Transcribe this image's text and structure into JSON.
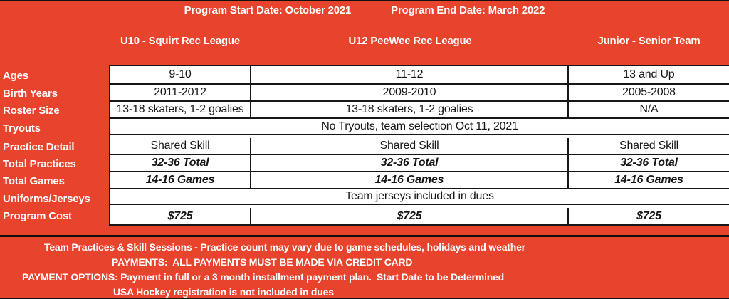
{
  "title_bar": {
    "start_date": "Program Start Date: October 2021",
    "end_date": "Program End Date: March 2022"
  },
  "table": {
    "column_headers": [
      "U10 - Squirt Rec League",
      "U12 PeeWee Rec League",
      "Junior - Senior Team"
    ],
    "rows": [
      {
        "label": "Ages",
        "type": "cells",
        "values": [
          "9-10",
          "11-12",
          "13 and Up"
        ],
        "emphasis": false
      },
      {
        "label": "Birth Years",
        "type": "cells",
        "values": [
          "2011-2012",
          "2009-2010",
          "2005-2008"
        ],
        "emphasis": false
      },
      {
        "label": "Roster Size",
        "type": "cells",
        "values": [
          "13-18 skaters, 1-2 goalies",
          "13-18 skaters, 1-2 goalies",
          "N/A"
        ],
        "emphasis": false
      },
      {
        "label": "Tryouts",
        "type": "merged",
        "value": "No Tryouts, team selection Oct 11, 2021",
        "emphasis": false
      },
      {
        "label": "Practice Detail",
        "type": "cells",
        "values": [
          "Shared Skill",
          "Shared Skill",
          "Shared Skill"
        ],
        "emphasis": false
      },
      {
        "label": "Total Practices",
        "type": "cells",
        "values": [
          "32-36 Total",
          "32-36 Total",
          "32-36 Total"
        ],
        "emphasis": true
      },
      {
        "label": "Total Games",
        "type": "cells",
        "values": [
          "14-16 Games",
          "14-16 Games",
          "14-16 Games"
        ],
        "emphasis": true
      },
      {
        "label": "Uniforms/Jerseys",
        "type": "merged",
        "value": "Team jerseys included in dues",
        "emphasis": false
      },
      {
        "label": "Program Cost",
        "type": "cells",
        "values": [
          "$725",
          "$725",
          "$725"
        ],
        "emphasis": true
      }
    ]
  },
  "footer": {
    "lines": [
      "Team Practices & Skill Sessions - Practice count may vary due to game schedules, holidays and weather",
      "PAYMENTS:  ALL PAYMENTS MUST BE MADE VIA CREDIT CARD",
      "PAYMENT OPTIONS: Payment in full or a 3 month installment payment plan.  Start Date to be Determined",
      "USA Hockey registration is not included in dues"
    ]
  },
  "colors": {
    "background": "#E8432C",
    "table_background": "#FFFFFF",
    "border": "#161616",
    "heading_text": "#FFFFFF",
    "cell_text": "#161616"
  }
}
